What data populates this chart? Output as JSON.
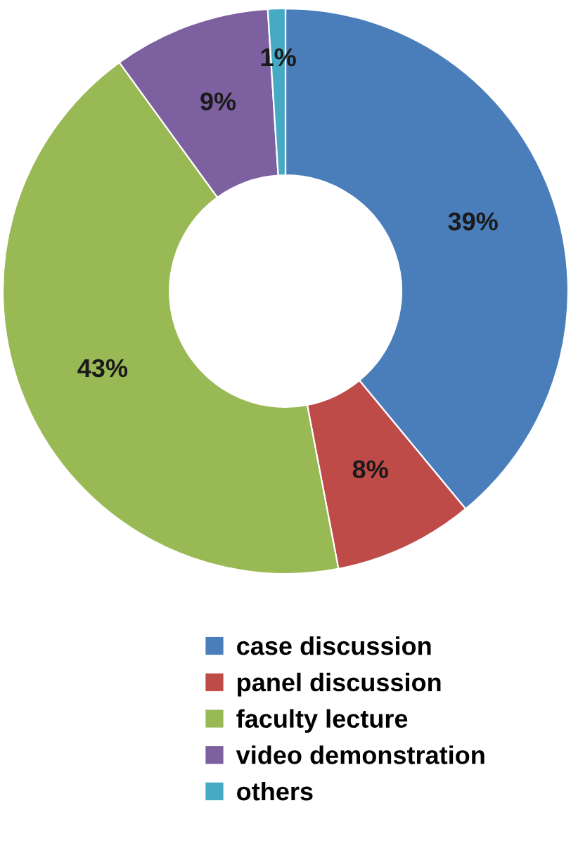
{
  "chart_data": {
    "type": "donut",
    "categories": [
      "case discussion",
      "panel discussion",
      "faculty lecture",
      "video demonstration",
      "others"
    ],
    "values": [
      39,
      8,
      43,
      9,
      1
    ],
    "colors": [
      "#4a7ebb",
      "#be4b48",
      "#98b954",
      "#7d60a0",
      "#46aac5"
    ],
    "value_labels": [
      "39%",
      "8%",
      "43%",
      "9%",
      "1%"
    ],
    "legend": "bottom"
  }
}
